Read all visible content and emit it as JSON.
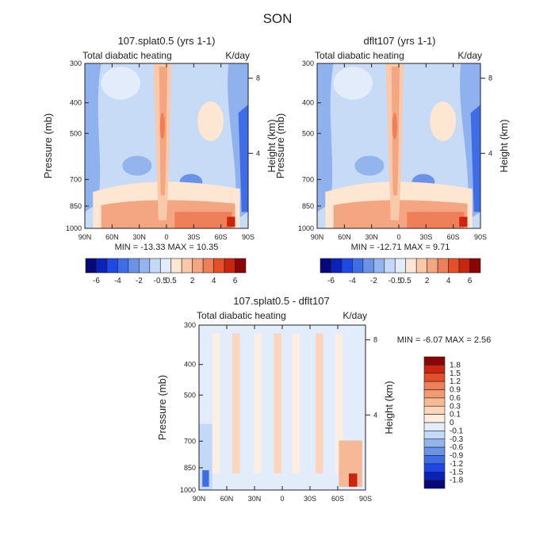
{
  "page_title": "SON",
  "chart_data": [
    {
      "type": "heatmap",
      "title": "107.splat0.5 (yrs 1-1)",
      "subtitle_left": "Total diabatic heating",
      "subtitle_right": "K/day",
      "xlabel": "",
      "ylabel": "Pressure (mb)",
      "y2label": "Height (km)",
      "x_ticks": [
        "90N",
        "60N",
        "30N",
        "0",
        "30S",
        "60S",
        "90S"
      ],
      "y_ticks": [
        "300",
        "400",
        "500",
        "700",
        "850",
        "1000"
      ],
      "y2_ticks": [
        "8",
        "4"
      ],
      "stats": "MIN = -13.33   MAX =  10.35",
      "colorbar": {
        "orientation": "horizontal",
        "labels": [
          "-6",
          "-4",
          "-2",
          "-0.5",
          "0.5",
          "2",
          "4",
          "6"
        ],
        "colors": [
          "#08087a",
          "#0b22b8",
          "#1d48e6",
          "#3f6de8",
          "#6a93e8",
          "#94b4ee",
          "#c4d8f7",
          "#e3ecfb",
          "#fde6d2",
          "#f9c9aa",
          "#f4a682",
          "#ef7f58",
          "#e44f2a",
          "#c9250f",
          "#8a0606"
        ]
      }
    },
    {
      "type": "heatmap",
      "title": "dflt107 (yrs 1-1)",
      "subtitle_left": "Total diabatic heating",
      "subtitle_right": "K/day",
      "xlabel": "",
      "ylabel": "Pressure (mb)",
      "y2label": "Height (km)",
      "x_ticks": [
        "90N",
        "60N",
        "30N",
        "0",
        "30S",
        "60S",
        "90S"
      ],
      "y_ticks": [
        "300",
        "400",
        "500",
        "700",
        "850",
        "1000"
      ],
      "y2_ticks": [
        "8",
        "4"
      ],
      "stats": "MIN = -12.71   MAX =   9.71",
      "colorbar": {
        "orientation": "horizontal",
        "labels": [
          "-6",
          "-4",
          "-2",
          "-0.5",
          "0.5",
          "2",
          "4",
          "6"
        ],
        "colors": [
          "#08087a",
          "#0b22b8",
          "#1d48e6",
          "#3f6de8",
          "#6a93e8",
          "#94b4ee",
          "#c4d8f7",
          "#e3ecfb",
          "#fde6d2",
          "#f9c9aa",
          "#f4a682",
          "#ef7f58",
          "#e44f2a",
          "#c9250f",
          "#8a0606"
        ]
      }
    },
    {
      "type": "heatmap",
      "title": "107.splat0.5 - dflt107",
      "subtitle_left": "Total diabatic heating",
      "subtitle_right": "K/day",
      "xlabel": "",
      "ylabel": "Pressure (mb)",
      "y2label": "Height (km)",
      "x_ticks": [
        "90N",
        "60N",
        "30N",
        "0",
        "30S",
        "60S",
        "90S"
      ],
      "y_ticks": [
        "300",
        "400",
        "500",
        "700",
        "850",
        "1000"
      ],
      "y2_ticks": [
        "8",
        "4"
      ],
      "stats": "MIN =   -6.07   MAX =   2.56",
      "colorbar": {
        "orientation": "vertical",
        "labels": [
          "1.8",
          "1.5",
          "1.2",
          "0.9",
          "0.6",
          "0.3",
          "0.1",
          "0",
          "-0.1",
          "-0.3",
          "-0.6",
          "-0.9",
          "-1.2",
          "-1.5",
          "-1.8"
        ],
        "colors": [
          "#8a0606",
          "#c9250f",
          "#e44f2a",
          "#ef7f58",
          "#f29a72",
          "#f6b895",
          "#fbd6bd",
          "#fdeee2",
          "#e3ecfb",
          "#c4d8f7",
          "#94b4ee",
          "#6a93e8",
          "#3f6de8",
          "#1d48e6",
          "#0b22b8",
          "#08087a"
        ]
      }
    }
  ]
}
